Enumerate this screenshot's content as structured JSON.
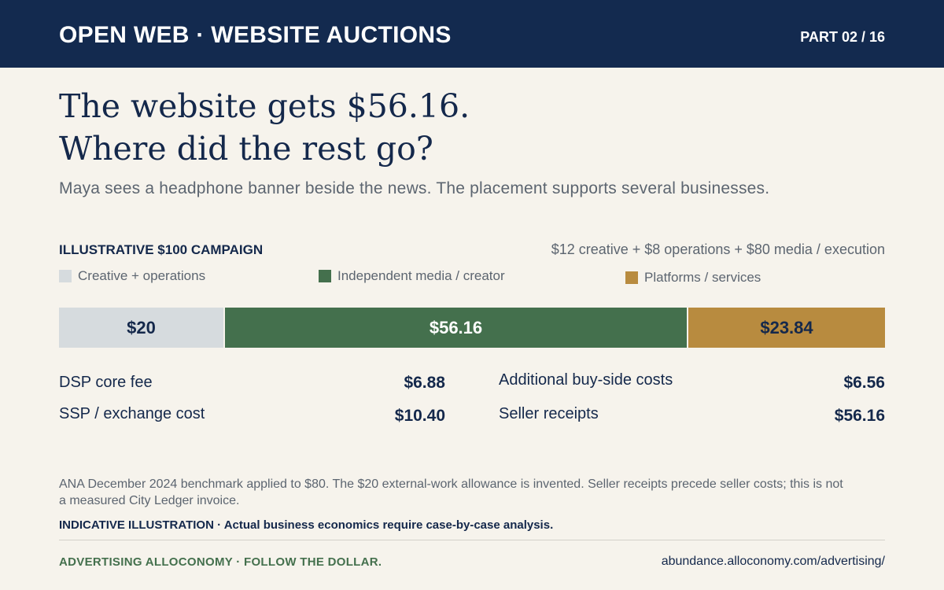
{
  "header": {
    "series_title": "OPEN WEB · WEBSITE AUCTIONS",
    "part": "PART 02 / 16"
  },
  "headline": {
    "line1": "The website gets $56.16.",
    "line2": "Where did the rest go?"
  },
  "subtitle": "Maya sees a headphone banner beside the news. The placement supports several businesses.",
  "colors": {
    "creative": "#d6dbde",
    "independent": "#44704d",
    "platforms": "#b88b3f",
    "navy": "#132a4f"
  },
  "chart_data": {
    "type": "bar",
    "title": "ILLUSTRATIVE $100 CAMPAIGN",
    "subtitle": "$12 creative + $8 operations + $80 media / execution",
    "stacked": true,
    "orientation": "horizontal",
    "total": 100,
    "legend": [
      "Creative + operations",
      "Independent media / creator",
      "Platforms / services"
    ],
    "series": [
      {
        "name": "Creative + operations",
        "value": 20,
        "label": "$20",
        "color": "#d6dbde",
        "text_color": "#14284b"
      },
      {
        "name": "Independent media / creator",
        "value": 56.16,
        "label": "$56.16",
        "color": "#44704d",
        "text_color": "#ffffff"
      },
      {
        "name": "Platforms / services",
        "value": 23.84,
        "label": "$23.84",
        "color": "#b88b3f",
        "text_color": "#14284b"
      }
    ]
  },
  "breakdown": {
    "left": [
      {
        "label": "DSP core fee",
        "value": "$6.88"
      },
      {
        "label": "SSP / exchange cost",
        "value": "$10.40"
      }
    ],
    "right": [
      {
        "label": "Additional buy-side costs",
        "value": "$6.56"
      },
      {
        "label": "Seller receipts",
        "value": "$56.16"
      }
    ]
  },
  "footnote": "ANA December 2024 benchmark applied to $80. The $20 external-work allowance is invented. Seller receipts precede seller costs; this is not a measured City Ledger invoice.",
  "disclaimer": "INDICATIVE ILLUSTRATION · Actual business economics require case-by-case analysis.",
  "footer": {
    "brand": "ADVERTISING ALLOCONOMY · FOLLOW THE DOLLAR.",
    "url": "abundance.alloconomy.com/advertising/"
  }
}
